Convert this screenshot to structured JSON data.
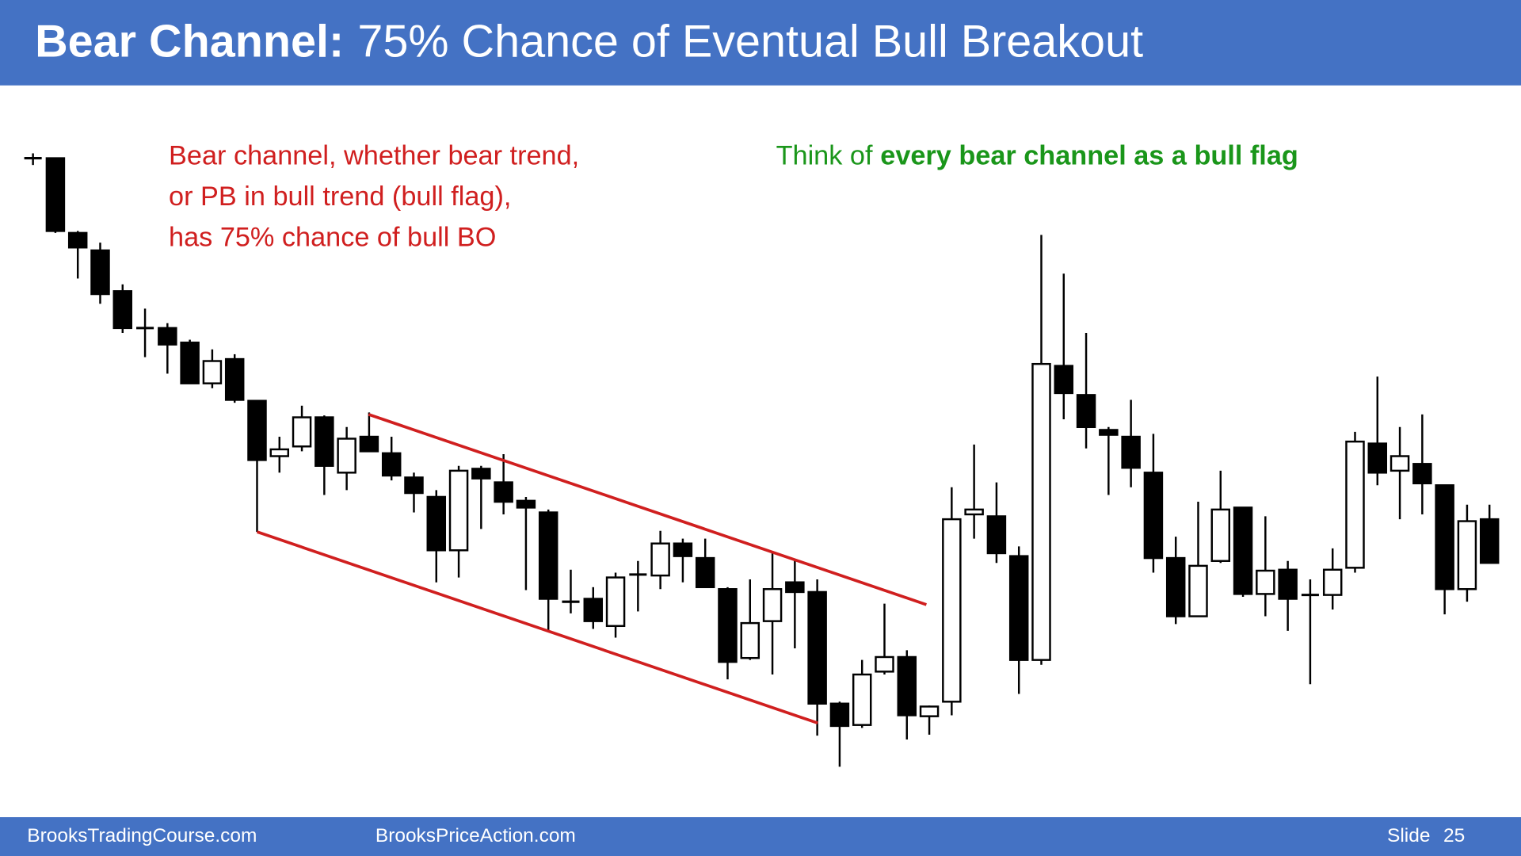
{
  "header": {
    "title_bold": "Bear Channel:",
    "title": "75% Chance of Eventual Bull Breakout"
  },
  "notes": {
    "red": [
      "Bear channel, whether bear trend,",
      "or PB in bull trend (bull flag),",
      "has 75% chance of bull BO"
    ],
    "green_lead": "Think of",
    "green_bold": "every bear channel as a bull flag"
  },
  "chart_data": {
    "type": "candlestick",
    "ylim": [
      0,
      700
    ],
    "up_color": "#ffffff",
    "down_color": "#000000",
    "open": [
      637,
      637,
      560,
      542,
      500,
      462,
      462,
      447,
      405,
      430,
      387,
      330,
      340,
      370,
      313,
      350,
      333,
      308,
      288,
      233,
      317,
      303,
      284,
      272,
      180,
      183,
      155,
      208,
      207,
      240,
      225,
      193,
      122,
      160,
      200,
      190,
      75,
      53,
      108,
      123,
      62,
      77,
      270,
      268,
      227,
      120,
      423,
      393,
      357,
      350,
      313,
      225,
      165,
      222,
      277,
      188,
      213,
      187,
      187,
      215,
      343,
      315,
      322,
      300,
      193,
      265
    ],
    "high": [
      642,
      637,
      562,
      550,
      507,
      482,
      467,
      450,
      440,
      435,
      387,
      350,
      382,
      372,
      360,
      375,
      350,
      313,
      295,
      320,
      320,
      332,
      288,
      275,
      213,
      195,
      210,
      222,
      253,
      245,
      245,
      195,
      203,
      232,
      223,
      203,
      77,
      120,
      178,
      130,
      73,
      298,
      342,
      303,
      237,
      558,
      518,
      457,
      360,
      388,
      353,
      247,
      283,
      315,
      277,
      268,
      222,
      203,
      235,
      355,
      412,
      360,
      373,
      300,
      280,
      280
    ],
    "low": [
      630,
      560,
      513,
      487,
      457,
      432,
      415,
      405,
      400,
      385,
      252,
      313,
      335,
      290,
      295,
      335,
      305,
      272,
      200,
      205,
      255,
      270,
      192,
      150,
      168,
      152,
      143,
      170,
      193,
      200,
      195,
      100,
      120,
      105,
      132,
      42,
      10,
      50,
      105,
      38,
      43,
      63,
      245,
      220,
      85,
      115,
      368,
      338,
      290,
      298,
      210,
      157,
      165,
      220,
      185,
      165,
      150,
      95,
      172,
      210,
      300,
      265,
      270,
      167,
      180,
      220
    ],
    "close": [
      637,
      562,
      545,
      497,
      462,
      462,
      445,
      405,
      428,
      388,
      326,
      337,
      370,
      320,
      348,
      335,
      310,
      292,
      233,
      315,
      307,
      283,
      277,
      183,
      180,
      160,
      205,
      208,
      240,
      227,
      195,
      118,
      158,
      193,
      190,
      75,
      52,
      105,
      123,
      63,
      72,
      265,
      275,
      230,
      120,
      425,
      395,
      360,
      352,
      318,
      225,
      165,
      217,
      275,
      188,
      212,
      183,
      187,
      213,
      345,
      313,
      330,
      302,
      193,
      263,
      220
    ]
  },
  "footer": {
    "left": "BrooksTradingCourse.com",
    "middle": "BrooksPriceAction.com",
    "slide_label": "Slide",
    "slide_number": "25"
  }
}
